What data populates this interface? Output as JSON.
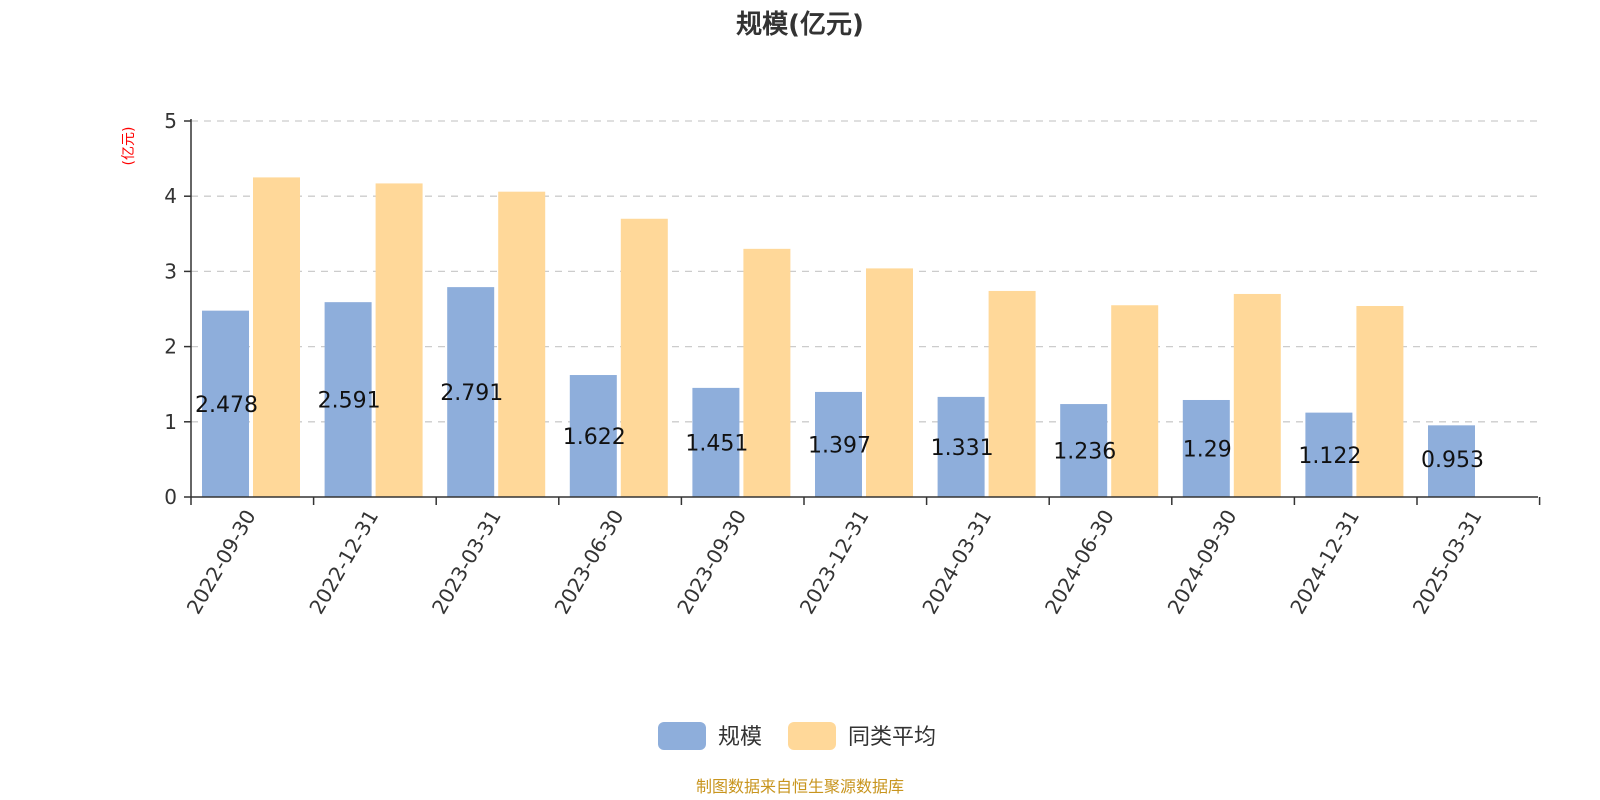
{
  "chart_data": {
    "type": "bar",
    "title": "规模(亿元)",
    "ylabel": "(亿元)",
    "ylim": [
      0,
      5
    ],
    "yticks": [
      0,
      1,
      2,
      3,
      4,
      5
    ],
    "grid": true,
    "legend_position": "bottom",
    "categories": [
      "2022-09-30",
      "2022-12-31",
      "2023-03-31",
      "2023-06-30",
      "2023-09-30",
      "2023-12-31",
      "2024-03-31",
      "2024-06-30",
      "2024-09-30",
      "2024-12-31",
      "2025-03-31"
    ],
    "series": [
      {
        "name": "规模",
        "color": "#8eaedb",
        "values": [
          2.478,
          2.591,
          2.791,
          1.622,
          1.451,
          1.397,
          1.331,
          1.236,
          1.29,
          1.122,
          0.953
        ],
        "labels": [
          "2.478",
          "2.591",
          "2.791",
          "1.622",
          "1.451",
          "1.397",
          "1.331",
          "1.236",
          "1.29",
          "1.122",
          "0.953"
        ]
      },
      {
        "name": "同类平均",
        "color": "#ffd899",
        "values": [
          4.25,
          4.17,
          4.06,
          3.7,
          3.3,
          3.04,
          2.74,
          2.55,
          2.7,
          2.54,
          null
        ]
      }
    ],
    "source_note": "制图数据来自恒生聚源数据库"
  }
}
